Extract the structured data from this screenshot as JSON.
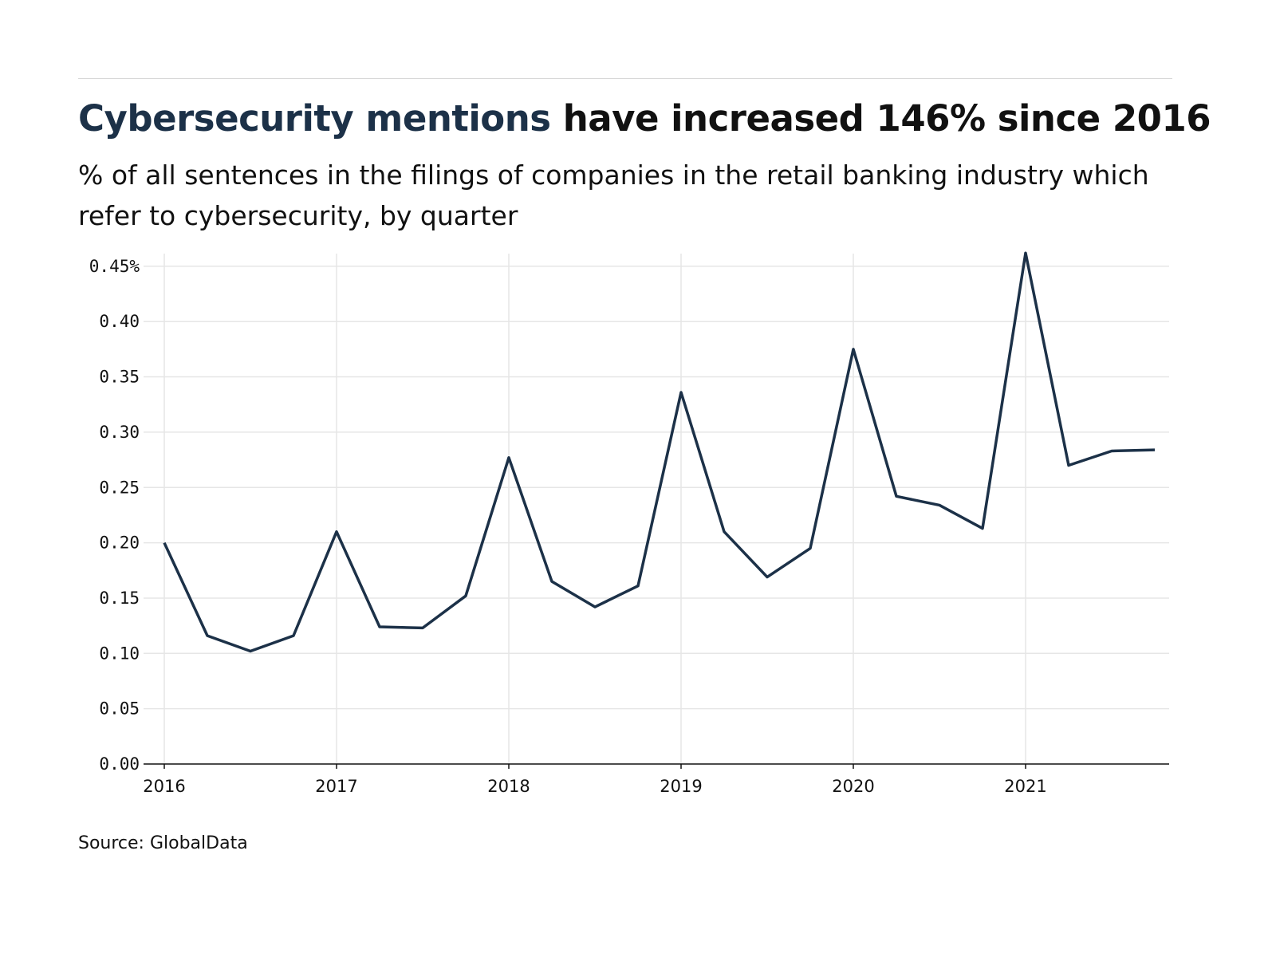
{
  "header": {
    "title_highlight": "Cybersecurity mentions",
    "title_rest": " have increased 146% since 2016",
    "subtitle": "% of all sentences in the filings of companies in the retail banking industry which refer to cybersecurity, by quarter"
  },
  "footer": {
    "source": "Source: GlobalData"
  },
  "colors": {
    "line": "#1c3148",
    "title_highlight": "#1c3148",
    "grid": "#e6e6e6"
  },
  "chart_data": {
    "type": "line",
    "title": "Cybersecurity mentions have increased 146% since 2016",
    "xlabel": "",
    "ylabel": "",
    "ylim": [
      0,
      0.46
    ],
    "grid": true,
    "y_ticks": [
      "0.00",
      "0.05",
      "0.10",
      "0.15",
      "0.20",
      "0.25",
      "0.30",
      "0.35",
      "0.40",
      "0.45%"
    ],
    "x_ticks": [
      "2016",
      "2017",
      "2018",
      "2019",
      "2020",
      "2021"
    ],
    "x": [
      "2016 Q1",
      "2016 Q2",
      "2016 Q3",
      "2016 Q4",
      "2017 Q1",
      "2017 Q2",
      "2017 Q3",
      "2017 Q4",
      "2018 Q1",
      "2018 Q2",
      "2018 Q3",
      "2018 Q4",
      "2019 Q1",
      "2019 Q2",
      "2019 Q3",
      "2019 Q4",
      "2020 Q1",
      "2020 Q2",
      "2020 Q3",
      "2020 Q4",
      "2021 Q1",
      "2021 Q2",
      "2021 Q3",
      "2021 Q4"
    ],
    "values": [
      0.2,
      0.116,
      0.102,
      0.116,
      0.21,
      0.124,
      0.123,
      0.152,
      0.277,
      0.165,
      0.142,
      0.161,
      0.336,
      0.21,
      0.169,
      0.195,
      0.375,
      0.242,
      0.234,
      0.213,
      0.462,
      0.27,
      0.283,
      0.284
    ]
  }
}
